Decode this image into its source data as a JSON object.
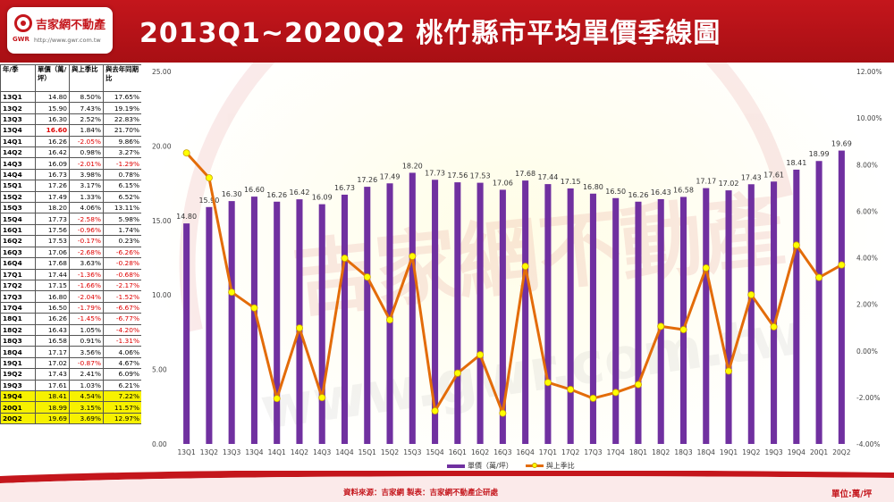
{
  "header": {
    "title": "2013Q1~2020Q2  桃竹縣市平均單價季線圖",
    "logo_name": "吉家網不動產",
    "logo_brand": "GWR",
    "logo_url": "http://www.gwr.com.tw"
  },
  "table": {
    "headers": [
      "年/季",
      "單價（萬/坪）",
      "與上季比",
      "與去年同期比"
    ],
    "rows": [
      {
        "q": "13Q1",
        "price": "14.80",
        "qoq": "8.50%",
        "yoy": "17.65%"
      },
      {
        "q": "13Q2",
        "price": "15.90",
        "qoq": "7.43%",
        "yoy": "19.19%"
      },
      {
        "q": "13Q3",
        "price": "16.30",
        "qoq": "2.52%",
        "yoy": "22.83%"
      },
      {
        "q": "13Q4",
        "price": "16.60",
        "qoq": "1.84%",
        "yoy": "21.70%"
      },
      {
        "q": "14Q1",
        "price": "16.26",
        "qoq": "-2.05%",
        "yoy": "9.86%"
      },
      {
        "q": "14Q2",
        "price": "16.42",
        "qoq": "0.98%",
        "yoy": "3.27%"
      },
      {
        "q": "14Q3",
        "price": "16.09",
        "qoq": "-2.01%",
        "yoy": "-1.29%"
      },
      {
        "q": "14Q4",
        "price": "16.73",
        "qoq": "3.98%",
        "yoy": "0.78%"
      },
      {
        "q": "15Q1",
        "price": "17.26",
        "qoq": "3.17%",
        "yoy": "6.15%"
      },
      {
        "q": "15Q2",
        "price": "17.49",
        "qoq": "1.33%",
        "yoy": "6.52%"
      },
      {
        "q": "15Q3",
        "price": "18.20",
        "qoq": "4.06%",
        "yoy": "13.11%"
      },
      {
        "q": "15Q4",
        "price": "17.73",
        "qoq": "-2.58%",
        "yoy": "5.98%"
      },
      {
        "q": "16Q1",
        "price": "17.56",
        "qoq": "-0.96%",
        "yoy": "1.74%"
      },
      {
        "q": "16Q2",
        "price": "17.53",
        "qoq": "-0.17%",
        "yoy": "0.23%"
      },
      {
        "q": "16Q3",
        "price": "17.06",
        "qoq": "-2.68%",
        "yoy": "-6.26%"
      },
      {
        "q": "16Q4",
        "price": "17.68",
        "qoq": "3.63%",
        "yoy": "-0.28%"
      },
      {
        "q": "17Q1",
        "price": "17.44",
        "qoq": "-1.36%",
        "yoy": "-0.68%"
      },
      {
        "q": "17Q2",
        "price": "17.15",
        "qoq": "-1.66%",
        "yoy": "-2.17%"
      },
      {
        "q": "17Q3",
        "price": "16.80",
        "qoq": "-2.04%",
        "yoy": "-1.52%"
      },
      {
        "q": "17Q4",
        "price": "16.50",
        "qoq": "-1.79%",
        "yoy": "-6.67%"
      },
      {
        "q": "18Q1",
        "price": "16.26",
        "qoq": "-1.45%",
        "yoy": "-6.77%"
      },
      {
        "q": "18Q2",
        "price": "16.43",
        "qoq": "1.05%",
        "yoy": "-4.20%"
      },
      {
        "q": "18Q3",
        "price": "16.58",
        "qoq": "0.91%",
        "yoy": "-1.31%"
      },
      {
        "q": "18Q4",
        "price": "17.17",
        "qoq": "3.56%",
        "yoy": "4.06%"
      },
      {
        "q": "19Q1",
        "price": "17.02",
        "qoq": "-0.87%",
        "yoy": "4.67%"
      },
      {
        "q": "19Q2",
        "price": "17.43",
        "qoq": "2.41%",
        "yoy": "6.09%"
      },
      {
        "q": "19Q3",
        "price": "17.61",
        "qoq": "1.03%",
        "yoy": "6.21%"
      },
      {
        "q": "19Q4",
        "price": "18.41",
        "qoq": "4.54%",
        "yoy": "7.22%"
      },
      {
        "q": "20Q1",
        "price": "18.99",
        "qoq": "3.15%",
        "yoy": "11.57%"
      },
      {
        "q": "20Q2",
        "price": "19.69",
        "qoq": "3.69%",
        "yoy": "12.97%"
      }
    ]
  },
  "chart_data": {
    "type": "bar",
    "title": "2013Q1~2020Q2  桃竹縣市平均單價季線圖",
    "categories": [
      "13Q1",
      "13Q2",
      "13Q3",
      "13Q4",
      "14Q1",
      "14Q2",
      "14Q3",
      "14Q4",
      "15Q1",
      "15Q2",
      "15Q3",
      "15Q4",
      "16Q1",
      "16Q2",
      "16Q3",
      "16Q4",
      "17Q1",
      "17Q2",
      "17Q3",
      "17Q4",
      "18Q1",
      "18Q2",
      "18Q3",
      "18Q4",
      "19Q1",
      "19Q2",
      "19Q3",
      "19Q4",
      "20Q1",
      "20Q2"
    ],
    "series": [
      {
        "name": "單價（萬/坪）",
        "type": "bar",
        "axis": "left",
        "color": "#7030a0",
        "values": [
          14.8,
          15.9,
          16.3,
          16.6,
          16.26,
          16.42,
          16.09,
          16.73,
          17.26,
          17.49,
          18.2,
          17.73,
          17.56,
          17.53,
          17.06,
          17.68,
          17.44,
          17.15,
          16.8,
          16.5,
          16.26,
          16.43,
          16.58,
          17.17,
          17.02,
          17.43,
          17.61,
          18.41,
          18.99,
          19.69
        ],
        "labels": [
          "14.80",
          "15.90",
          "16.30",
          "16.60",
          "16.26",
          "16.42",
          "16.09",
          "16.73",
          "17.26",
          "17.49",
          "18.20",
          "17.73",
          "17.56",
          "17.53",
          "17.06",
          "17.68",
          "17.44",
          "17.15",
          "16.80",
          "16.50",
          "16.26",
          "16.43",
          "16.58",
          "17.17",
          "17.02",
          "17.43",
          "17.61",
          "18.41",
          "18.99",
          "19.69"
        ]
      },
      {
        "name": "與上季比",
        "type": "line",
        "axis": "right",
        "color": "#e36c09",
        "marker_color": "#ffff00",
        "values": [
          8.5,
          7.43,
          2.52,
          1.84,
          -2.05,
          0.98,
          -2.01,
          3.98,
          3.17,
          1.33,
          4.06,
          -2.58,
          -0.96,
          -0.17,
          -2.68,
          3.63,
          -1.36,
          -1.66,
          -2.04,
          -1.79,
          -1.45,
          1.05,
          0.91,
          3.56,
          -0.87,
          2.41,
          1.03,
          4.54,
          3.15,
          3.69
        ]
      }
    ],
    "y_left": {
      "min": 0,
      "max": 25,
      "ticks": [
        "0.00",
        "5.00",
        "10.00",
        "15.00",
        "20.00",
        "25.00"
      ]
    },
    "y_right": {
      "min": -4,
      "max": 12,
      "ticks": [
        "-4.00%",
        "-2.00%",
        "0.00%",
        "2.00%",
        "4.00%",
        "6.00%",
        "8.00%",
        "10.00%",
        "12.00%"
      ]
    },
    "legend_placement": "bottom",
    "grid": false
  },
  "legend": {
    "bar_label": "單價（萬/坪）",
    "line_label": "與上季比"
  },
  "footer": {
    "source": "資料來源：吉家網  製表：吉家網不動產企研處",
    "unit": "單位:萬/坪"
  },
  "watermark": {
    "text": "吉家網不動產",
    "url_text": "www.gwr.com.tw"
  },
  "colors": {
    "header": "#c4161c",
    "bar": "#7030a0",
    "line": "#e36c09",
    "marker": "#ffff00",
    "negative": "#e00000",
    "highlight_row": "#f7f100"
  }
}
